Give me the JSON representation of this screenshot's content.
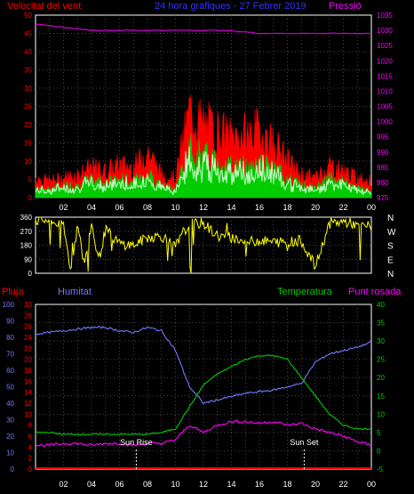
{
  "header": {
    "left_title": "Velocitat del vent",
    "center_title": "24 hora grafiques - 27 Febrer 2019",
    "right_title": "Pressió"
  },
  "hours": [
    "02",
    "04",
    "06",
    "08",
    "10",
    "12",
    "14",
    "16",
    "18",
    "20",
    "22",
    "00"
  ],
  "colors": {
    "wind_gust": "#ff0000",
    "wind_avg": "#00cc00",
    "wind_light": "#ccffcc",
    "pressure": "#cc00cc",
    "direction": "#ffff00",
    "rain": "#ff0000",
    "humidity": "#7777ff",
    "temperature": "#00cc00",
    "dewpoint": "#ff00ff",
    "axis_left": "#ff0000",
    "axis_right_pressure": "#ff00ff",
    "axis_right_temp": "#00cc00",
    "humidity_axis": "#7777ff"
  },
  "chart_data": [
    {
      "type": "line",
      "name": "wind",
      "y_left": {
        "ylim": [
          0,
          50
        ],
        "ticks": [
          "0",
          "5",
          "10",
          "15",
          "20",
          "25",
          "30",
          "35",
          "40",
          "45",
          "50"
        ]
      },
      "y_right": {
        "ylim": [
          975,
          1035
        ],
        "ticks": [
          "975",
          "980",
          "985",
          "990",
          "995",
          "1000",
          "1005",
          "1010",
          "1015",
          "1020",
          "1025",
          "1030",
          "1035"
        ]
      },
      "grid": true,
      "series": [
        {
          "key": "gust",
          "x": [
            0,
            1,
            2,
            3,
            4,
            5,
            6,
            7,
            8,
            9,
            10,
            11,
            12,
            13,
            14,
            15,
            16,
            17,
            18,
            19,
            20,
            21,
            22,
            23,
            24
          ],
          "values": [
            6,
            5,
            6,
            7,
            9,
            8,
            10,
            9,
            14,
            7,
            6,
            26,
            22,
            20,
            18,
            19,
            20,
            17,
            11,
            7,
            6,
            10,
            8,
            6,
            5
          ]
        },
        {
          "key": "avg",
          "x": [
            0,
            1,
            2,
            3,
            4,
            5,
            6,
            7,
            8,
            9,
            10,
            11,
            12,
            13,
            14,
            15,
            16,
            17,
            18,
            19,
            20,
            21,
            22,
            23,
            24
          ],
          "values": [
            3,
            3,
            4,
            4,
            6,
            5,
            6,
            5,
            8,
            4,
            3,
            15,
            13,
            12,
            10,
            10,
            11,
            9,
            6,
            4,
            3,
            6,
            5,
            3,
            3
          ]
        },
        {
          "key": "pressure",
          "x": [
            0,
            1,
            2,
            3,
            4,
            5,
            6,
            7,
            8,
            9,
            10,
            11,
            12,
            13,
            14,
            15,
            16,
            17,
            18,
            19,
            20,
            21,
            22,
            23,
            24
          ],
          "values": [
            1032,
            1031.5,
            1031,
            1030.5,
            1030,
            1030,
            1030,
            1030,
            1030,
            1030,
            1030,
            1030,
            1030,
            1030,
            1029.8,
            1029.5,
            1029,
            1029,
            1029,
            1029,
            1029,
            1029,
            1029,
            1029,
            1029
          ]
        }
      ]
    },
    {
      "type": "line",
      "name": "wind_direction",
      "ylim": [
        0,
        360
      ],
      "ticks": [
        "0",
        "90",
        "180",
        "270",
        "360"
      ],
      "compass": [
        "N",
        "W",
        "S",
        "E",
        "N"
      ],
      "grid": true,
      "series": [
        {
          "key": "direction",
          "x": [
            0,
            1,
            2,
            2.5,
            3,
            3.5,
            4,
            4.5,
            5,
            6,
            7,
            8,
            9,
            10,
            11,
            12,
            13,
            14,
            15,
            16,
            17,
            18,
            19,
            20,
            21,
            22,
            23,
            24
          ],
          "values": [
            340,
            340,
            300,
            30,
            300,
            50,
            320,
            80,
            280,
            190,
            180,
            230,
            240,
            170,
            320,
            320,
            240,
            230,
            200,
            210,
            200,
            200,
            210,
            40,
            320,
            330,
            310,
            300
          ]
        }
      ]
    },
    {
      "type": "line",
      "name": "atmospheric",
      "y_rain": {
        "ylim": [
          0,
          30
        ],
        "ticks": [
          "0",
          "2",
          "4",
          "6",
          "8",
          "10",
          "12",
          "14",
          "16",
          "18",
          "20",
          "22",
          "24",
          "26",
          "28",
          "30"
        ],
        "label": "Pluja"
      },
      "y_humidity": {
        "ylim": [
          0,
          100
        ],
        "ticks": [
          "0",
          "10",
          "20",
          "30",
          "40",
          "50",
          "60",
          "70",
          "80",
          "90",
          "100"
        ],
        "label": "Humitat"
      },
      "y_temp": {
        "ylim": [
          -5,
          40
        ],
        "ticks": [
          "-5",
          "0",
          "5",
          "10",
          "15",
          "20",
          "25",
          "30",
          "35",
          "40"
        ],
        "label": "Temperatura"
      },
      "dewpoint_label": "Punt rosada",
      "annotations": [
        {
          "label": "Sun Rise",
          "x": 7.2
        },
        {
          "label": "Sun Set",
          "x": 19.2
        }
      ],
      "grid": true,
      "series": [
        {
          "key": "rain",
          "x": [
            0,
            24
          ],
          "values": [
            0,
            0
          ]
        },
        {
          "key": "humidity",
          "x": [
            0,
            1,
            2,
            3,
            4,
            5,
            6,
            7,
            8,
            9,
            10,
            11,
            12,
            13,
            14,
            15,
            16,
            17,
            18,
            19,
            20,
            21,
            22,
            23,
            24
          ],
          "values": [
            82,
            83,
            84,
            85,
            86,
            86,
            84,
            83,
            86,
            84,
            72,
            50,
            40,
            42,
            44,
            46,
            47,
            48,
            50,
            52,
            65,
            70,
            72,
            74,
            77
          ]
        },
        {
          "key": "temperature",
          "x": [
            0,
            1,
            2,
            3,
            4,
            5,
            6,
            7,
            8,
            9,
            10,
            11,
            12,
            13,
            14,
            15,
            16,
            17,
            18,
            19,
            20,
            21,
            22,
            23,
            24
          ],
          "values": [
            5,
            5,
            4.5,
            4.5,
            4.5,
            4.5,
            4.5,
            4.5,
            4.5,
            5,
            6,
            12,
            18,
            21,
            23,
            25,
            26,
            26,
            25,
            20,
            15,
            10,
            7,
            6,
            6
          ]
        },
        {
          "key": "dewpoint",
          "x": [
            0,
            1,
            2,
            3,
            4,
            5,
            6,
            7,
            8,
            9,
            10,
            11,
            12,
            13,
            14,
            15,
            16,
            17,
            18,
            19,
            20,
            21,
            22,
            23,
            24
          ],
          "values": [
            1.5,
            1.5,
            2,
            2,
            1.5,
            2,
            2,
            1.5,
            2,
            2,
            3,
            7,
            5,
            7,
            8,
            8,
            7.5,
            8,
            7,
            7.5,
            6,
            5,
            4,
            2.5,
            1.5
          ]
        }
      ]
    }
  ],
  "labels": {
    "rain_axis": "Pluja",
    "humidity_axis": "Humitat",
    "temp_axis": "Temperatura",
    "dew_axis": "Punt rosada",
    "sunrise": "Sun Rise",
    "sunset": "Sun Set"
  }
}
